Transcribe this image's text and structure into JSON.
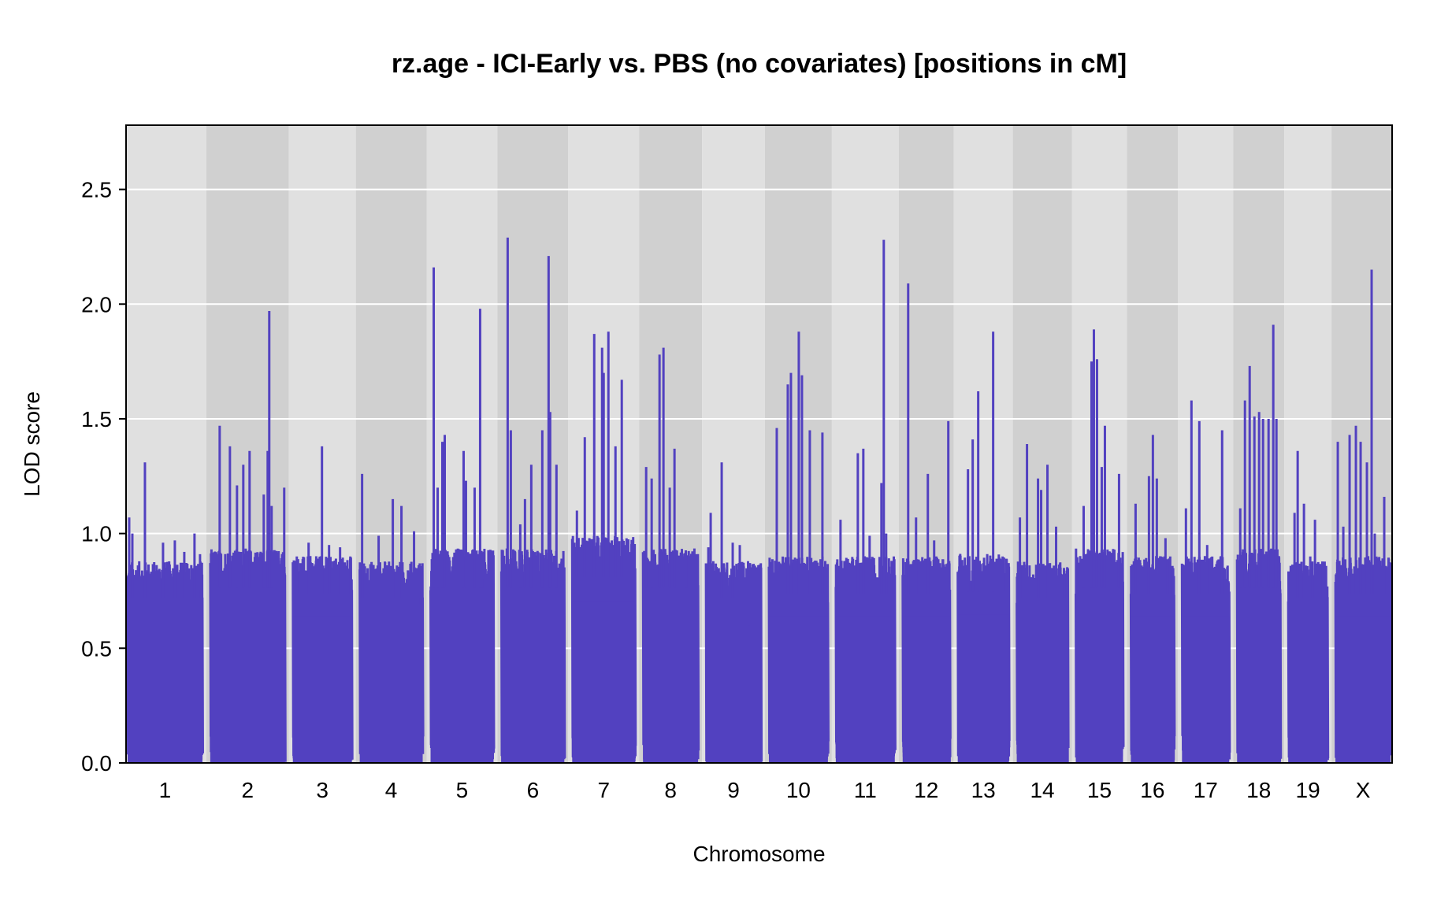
{
  "chart_data": {
    "type": "line",
    "title": "rz.age - ICI-Early vs. PBS (no covariates) [positions in cM]",
    "xlabel": "Chromosome",
    "ylabel": "LOD score",
    "ylim": [
      0,
      2.78
    ],
    "yticks": [
      "0.0",
      "0.5",
      "1.0",
      "1.5",
      "2.0",
      "2.5"
    ],
    "ytick_values": [
      0,
      0.5,
      1.0,
      1.5,
      2.0,
      2.5
    ],
    "grid": true,
    "colors": {
      "line": "#5241c0",
      "band_light": "#e0e0e0",
      "band_dark": "#d0d0d0",
      "grid": "#ffffff",
      "frame": "#000000"
    },
    "chromosomes": [
      {
        "name": "1",
        "start": 0,
        "end": 95,
        "base": 0.8,
        "peaks": [
          [
            2,
            1.07
          ],
          [
            6,
            1.0
          ],
          [
            22,
            1.31
          ],
          [
            45,
            0.96
          ],
          [
            60,
            0.97
          ],
          [
            72,
            0.92
          ],
          [
            85,
            1.0
          ],
          [
            92,
            0.91
          ],
          [
            93,
            0.75
          ]
        ]
      },
      {
        "name": "2",
        "start": 105,
        "end": 200,
        "base": 0.85,
        "peaks": [
          [
            12,
            1.47
          ],
          [
            25,
            1.38
          ],
          [
            34,
            1.21
          ],
          [
            42,
            1.3
          ],
          [
            50,
            1.36
          ],
          [
            68,
            1.17
          ],
          [
            73,
            1.36
          ],
          [
            75,
            1.97
          ],
          [
            78,
            1.12
          ],
          [
            94,
            1.2
          ]
        ]
      },
      {
        "name": "3",
        "start": 210,
        "end": 285,
        "base": 0.82,
        "peaks": [
          [
            5,
            0.9
          ],
          [
            20,
            0.96
          ],
          [
            37,
            1.38
          ],
          [
            46,
            0.95
          ],
          [
            60,
            0.94
          ],
          [
            73,
            0.9
          ]
        ]
      },
      {
        "name": "4",
        "start": 295,
        "end": 375,
        "base": 0.8,
        "peaks": [
          [
            3,
            1.26
          ],
          [
            24,
            0.99
          ],
          [
            42,
            1.15
          ],
          [
            53,
            1.12
          ],
          [
            69,
            1.01
          ],
          [
            77,
            0.69
          ]
        ]
      },
      {
        "name": "5",
        "start": 385,
        "end": 465,
        "base": 0.85,
        "peaks": [
          [
            4,
            2.16
          ],
          [
            9,
            1.2
          ],
          [
            15,
            1.4
          ],
          [
            18,
            1.43
          ],
          [
            42,
            1.36
          ],
          [
            45,
            1.23
          ],
          [
            56,
            1.2
          ],
          [
            63,
            1.98
          ],
          [
            66,
            0.8
          ]
        ]
      },
      {
        "name": "6",
        "start": 475,
        "end": 555,
        "base": 0.85,
        "peaks": [
          [
            8,
            2.29
          ],
          [
            12,
            1.45
          ],
          [
            24,
            1.04
          ],
          [
            30,
            1.15
          ],
          [
            38,
            1.3
          ],
          [
            52,
            1.45
          ],
          [
            60,
            2.21
          ],
          [
            62,
            1.53
          ],
          [
            70,
            1.3
          ]
        ]
      },
      {
        "name": "7",
        "start": 565,
        "end": 645,
        "base": 0.9,
        "peaks": [
          [
            6,
            1.1
          ],
          [
            16,
            1.42
          ],
          [
            28,
            1.87
          ],
          [
            38,
            1.81
          ],
          [
            46,
            1.88
          ],
          [
            40,
            1.7
          ],
          [
            55,
            1.38
          ],
          [
            63,
            1.67
          ]
        ]
      },
      {
        "name": "8",
        "start": 655,
        "end": 725,
        "base": 0.85,
        "peaks": [
          [
            4,
            1.29
          ],
          [
            11,
            1.24
          ],
          [
            21,
            1.78
          ],
          [
            26,
            1.81
          ],
          [
            34,
            1.2
          ],
          [
            40,
            1.37
          ],
          [
            55,
            0.9
          ]
        ]
      },
      {
        "name": "9",
        "start": 735,
        "end": 805,
        "base": 0.8,
        "peaks": [
          [
            3,
            0.94
          ],
          [
            6,
            1.09
          ],
          [
            20,
            1.31
          ],
          [
            34,
            0.96
          ],
          [
            43,
            0.95
          ],
          [
            55,
            0.6
          ],
          [
            66,
            0.8
          ]
        ]
      },
      {
        "name": "10",
        "start": 815,
        "end": 890,
        "base": 0.82,
        "peaks": [
          [
            10,
            1.46
          ],
          [
            24,
            1.65
          ],
          [
            28,
            1.7
          ],
          [
            38,
            1.88
          ],
          [
            42,
            1.69
          ],
          [
            52,
            1.45
          ],
          [
            68,
            1.44
          ]
        ]
      },
      {
        "name": "11",
        "start": 900,
        "end": 975,
        "base": 0.82,
        "peaks": [
          [
            6,
            1.06
          ],
          [
            28,
            1.35
          ],
          [
            35,
            1.37
          ],
          [
            43,
            0.99
          ],
          [
            58,
            1.22
          ],
          [
            61,
            2.28
          ],
          [
            64,
            1.0
          ],
          [
            73,
            0.87
          ]
        ]
      },
      {
        "name": "12",
        "start": 985,
        "end": 1045,
        "base": 0.82,
        "peaks": [
          [
            7,
            2.09
          ],
          [
            17,
            1.07
          ],
          [
            32,
            1.26
          ],
          [
            40,
            0.97
          ],
          [
            58,
            1.49
          ]
        ]
      },
      {
        "name": "13",
        "start": 1055,
        "end": 1120,
        "base": 0.83,
        "peaks": [
          [
            13,
            1.28
          ],
          [
            19,
            1.41
          ],
          [
            26,
            1.62
          ],
          [
            45,
            1.88
          ],
          [
            57,
            0.9
          ]
        ]
      },
      {
        "name": "14",
        "start": 1130,
        "end": 1195,
        "base": 0.8,
        "peaks": [
          [
            4,
            1.07
          ],
          [
            13,
            1.39
          ],
          [
            27,
            1.24
          ],
          [
            31,
            1.19
          ],
          [
            39,
            1.3
          ],
          [
            50,
            1.03
          ],
          [
            60,
            0.85
          ]
        ]
      },
      {
        "name": "15",
        "start": 1205,
        "end": 1265,
        "base": 0.85,
        "peaks": [
          [
            10,
            1.12
          ],
          [
            20,
            1.75
          ],
          [
            23,
            1.89
          ],
          [
            27,
            1.76
          ],
          [
            33,
            1.29
          ],
          [
            37,
            1.47
          ],
          [
            55,
            1.26
          ]
        ]
      },
      {
        "name": "16",
        "start": 1275,
        "end": 1330,
        "base": 0.82,
        "peaks": [
          [
            6,
            1.13
          ],
          [
            23,
            1.25
          ],
          [
            28,
            1.43
          ],
          [
            33,
            1.24
          ],
          [
            44,
            0.98
          ],
          [
            50,
            0.9
          ]
        ]
      },
      {
        "name": "17",
        "start": 1340,
        "end": 1400,
        "base": 0.82,
        "peaks": [
          [
            5,
            1.11
          ],
          [
            12,
            1.58
          ],
          [
            22,
            1.49
          ],
          [
            32,
            0.95
          ],
          [
            51,
            1.45
          ],
          [
            58,
            0.86
          ]
        ]
      },
      {
        "name": "18",
        "start": 1410,
        "end": 1465,
        "base": 0.85,
        "peaks": [
          [
            4,
            1.11
          ],
          [
            10,
            1.58
          ],
          [
            16,
            1.73
          ],
          [
            22,
            1.51
          ],
          [
            28,
            1.53
          ],
          [
            33,
            1.5
          ],
          [
            40,
            1.5
          ],
          [
            46,
            1.91
          ],
          [
            50,
            1.5
          ]
        ]
      },
      {
        "name": "19",
        "start": 1475,
        "end": 1525,
        "base": 0.8,
        "peaks": [
          [
            8,
            1.09
          ],
          [
            12,
            1.36
          ],
          [
            20,
            1.13
          ],
          [
            28,
            0.9
          ],
          [
            34,
            1.06
          ],
          [
            44,
            0.85
          ]
        ]
      },
      {
        "name": "X",
        "start": 1535,
        "end": 1605,
        "base": 0.82,
        "peaks": [
          [
            3,
            1.4
          ],
          [
            10,
            1.03
          ],
          [
            18,
            1.43
          ],
          [
            26,
            1.47
          ],
          [
            32,
            1.4
          ],
          [
            40,
            1.31
          ],
          [
            46,
            2.15
          ],
          [
            50,
            1.0
          ],
          [
            62,
            1.16
          ]
        ]
      }
    ]
  }
}
